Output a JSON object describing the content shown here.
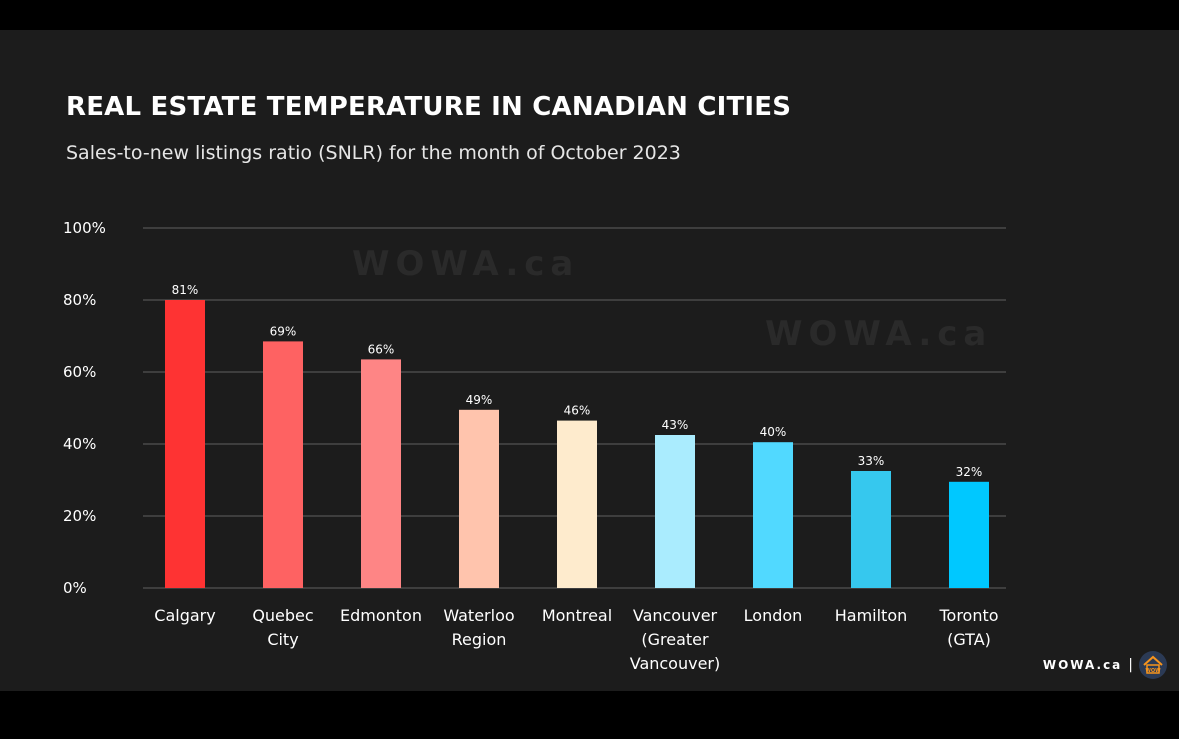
{
  "chart_data": {
    "type": "bar",
    "title": "REAL ESTATE TEMPERATURE IN CANADIAN CITIES",
    "subtitle": "Sales-to-new listings ratio (SNLR) for the month of October 2023",
    "xlabel": "",
    "ylabel": "",
    "ylim": [
      0,
      100
    ],
    "yticks": [
      0,
      20,
      40,
      60,
      80,
      100
    ],
    "ytick_labels": [
      "0%",
      "20%",
      "40%",
      "60%",
      "80%",
      "100%"
    ],
    "grid": true,
    "categories": [
      [
        "Calgary"
      ],
      [
        "Quebec",
        "City"
      ],
      [
        "Edmonton"
      ],
      [
        "Waterloo",
        "Region"
      ],
      [
        "Montreal"
      ],
      [
        "Vancouver",
        "(Greater",
        "Vancouver)"
      ],
      [
        "London"
      ],
      [
        "Hamilton"
      ],
      [
        "Toronto",
        "(GTA)"
      ]
    ],
    "values": [
      81,
      69,
      66,
      49,
      46,
      43,
      40,
      33,
      32
    ],
    "bar_heights": [
      80,
      68.5,
      63.5,
      49.5,
      46.5,
      42.5,
      40.5,
      32.5,
      29.5
    ],
    "value_labels": [
      "81%",
      "69%",
      "66%",
      "49%",
      "46%",
      "43%",
      "40%",
      "33%",
      "32%"
    ],
    "colors": [
      "#fe3333",
      "#fe6262",
      "#fe8585",
      "#ffc4ad",
      "#feebcd",
      "#aaecfe",
      "#51d9ff",
      "#36c8ee",
      "#00c8ff"
    ]
  },
  "watermark": "WOWA.ca",
  "brand": {
    "text": "WOWA.ca",
    "separator": "|",
    "logo_text": "WOW"
  }
}
